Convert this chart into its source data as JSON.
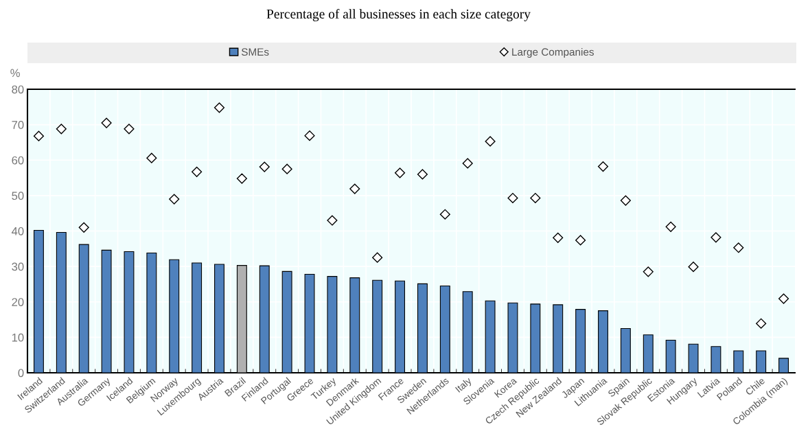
{
  "chart_data": {
    "type": "bar",
    "title": "Percentage of all businesses in each size category",
    "ylabel": "%",
    "categories": [
      "Ireland",
      "Switzerland",
      "Australia",
      "Germany",
      "Iceland",
      "Belgium",
      "Norway",
      "Luxembourg",
      "Austria",
      "Brazil",
      "Finland",
      "Portugal",
      "Greece",
      "Turkey",
      "Denmark",
      "United Kingdom",
      "France",
      "Sweden",
      "Netherlands",
      "Italy",
      "Slovenia",
      "Korea",
      "Czech Republic",
      "New Zealand",
      "Japan",
      "Lithuania",
      "Spain",
      "Slovak Republic",
      "Estonia",
      "Hungary",
      "Latvia",
      "Poland",
      "Chile",
      "Colombia (man)"
    ],
    "series": [
      {
        "name": "SMEs",
        "color": "#4f81bd",
        "colors": [
          "#4f81bd",
          "#4f81bd",
          "#4f81bd",
          "#4f81bd",
          "#4f81bd",
          "#4f81bd",
          "#4f81bd",
          "#4f81bd",
          "#4f81bd",
          "#b0b0b0",
          "#4f81bd",
          "#4f81bd",
          "#4f81bd",
          "#4f81bd",
          "#4f81bd",
          "#4f81bd",
          "#4f81bd",
          "#4f81bd",
          "#4f81bd",
          "#4f81bd",
          "#4f81bd",
          "#4f81bd",
          "#4f81bd",
          "#4f81bd",
          "#4f81bd",
          "#4f81bd",
          "#4f81bd",
          "#4f81bd",
          "#4f81bd",
          "#4f81bd",
          "#4f81bd",
          "#4f81bd",
          "#4f81bd",
          "#4f81bd"
        ],
        "values": [
          40.2,
          39.6,
          36.2,
          34.6,
          34.2,
          33.8,
          31.9,
          31.0,
          30.6,
          30.3,
          30.2,
          28.6,
          27.8,
          27.2,
          26.8,
          26.1,
          25.9,
          25.1,
          24.5,
          22.9,
          20.3,
          19.7,
          19.4,
          19.2,
          17.9,
          17.5,
          12.5,
          10.7,
          9.2,
          8.1,
          7.4,
          6.2,
          6.2,
          4.1
        ]
      },
      {
        "name": "Large Companies",
        "type": "scatter",
        "marker": "diamond",
        "color": "#ffffff",
        "values": [
          66.8,
          68.8,
          41.0,
          70.5,
          68.8,
          60.6,
          49.0,
          56.7,
          74.8,
          54.8,
          58.1,
          57.5,
          66.9,
          43.0,
          51.9,
          32.5,
          56.4,
          56.0,
          44.7,
          59.1,
          65.3,
          49.3,
          49.3,
          38.1,
          37.4,
          58.2,
          48.6,
          28.5,
          41.2,
          29.9,
          38.2,
          35.3,
          13.9,
          20.9
        ]
      }
    ],
    "ylim": [
      0,
      80
    ],
    "yticks": [
      0,
      10,
      20,
      30,
      40,
      50,
      60,
      70,
      80
    ],
    "grid": true,
    "legend": "top"
  }
}
